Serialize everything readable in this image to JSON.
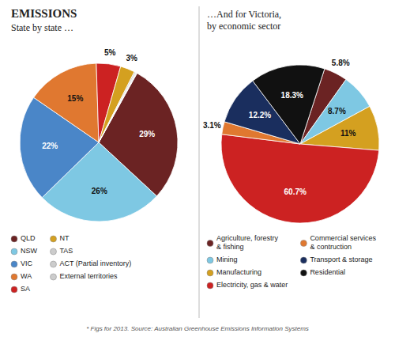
{
  "chart_data": [
    {
      "type": "pie",
      "title": "EMISSIONS",
      "subtitle": "State by state …",
      "categories": [
        "QLD",
        "NSW",
        "VIC",
        "WA",
        "SA",
        "NT",
        "TAS",
        "ACT (Partial inventory)",
        "External territories"
      ],
      "values": [
        29,
        26,
        22,
        15,
        5,
        3,
        0.3,
        0.2,
        0.1
      ],
      "colors": [
        "#6b2323",
        "#7ec8e3",
        "#4a86c8",
        "#e07830",
        "#cc2222",
        "#d4a020",
        "#cccccc",
        "#cccccc",
        "#cccccc"
      ],
      "data_labels": true,
      "value_labels": [
        "29%",
        "26%",
        "22%",
        "15%",
        "5%",
        "3%",
        null,
        null,
        null
      ],
      "legend": "bottom",
      "annotations": [
        "* Figs for 2013.    Source: Australian Greenhouse Emissions Information Systems"
      ]
    },
    {
      "type": "pie",
      "title": "…And for Victoria,\nby economic sector",
      "categories": [
        "Agriculture, forestry\n& fishing",
        "Mining",
        "Manufacturing",
        "Electricity, gas & water",
        "Commercial services\n& contruction",
        "Transport & storage",
        "Residential"
      ],
      "values": [
        5.8,
        8.7,
        11.0,
        60.7,
        3.1,
        12.2,
        18.3
      ],
      "colors": [
        "#6b2323",
        "#7ec8e3",
        "#d4a020",
        "#cc2222",
        "#e07830",
        "#1a2e5e",
        "#111111"
      ],
      "data_labels": true,
      "value_labels": [
        "5.8%",
        "8.7%",
        "11%",
        "60.7%",
        "3.1%",
        "12.2%",
        "18.3%"
      ],
      "legend": "bottom"
    }
  ]
}
